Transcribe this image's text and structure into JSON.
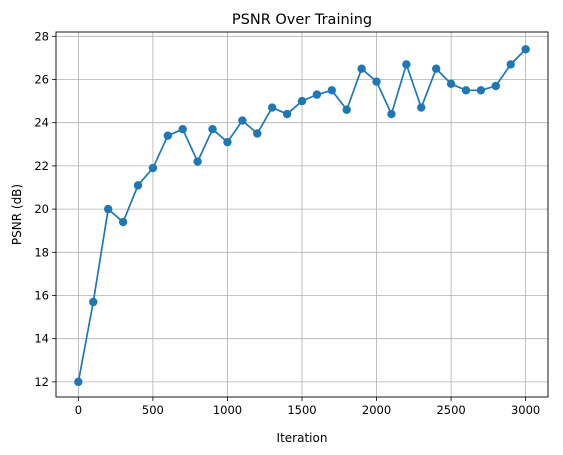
{
  "chart_data": {
    "type": "line",
    "title": "PSNR Over Training",
    "xlabel": "Iteration",
    "ylabel": "PSNR (dB)",
    "xlim": [
      -150,
      3150
    ],
    "ylim": [
      11.3,
      28.2
    ],
    "grid": true,
    "xticks": [
      0,
      500,
      1000,
      1500,
      2000,
      2500,
      3000
    ],
    "yticks": [
      12,
      14,
      16,
      18,
      20,
      22,
      24,
      26,
      28
    ],
    "marker": "circle",
    "color": "#1f77b4",
    "series": [
      {
        "x": [
          0,
          100,
          200,
          300,
          400,
          500,
          600,
          700,
          800,
          900,
          1000,
          1100,
          1200,
          1300,
          1400,
          1500,
          1600,
          1700,
          1800,
          1900,
          2000,
          2100,
          2200,
          2300,
          2400,
          2500,
          2600,
          2700,
          2800,
          2900,
          3000
        ],
        "y": [
          12.0,
          15.7,
          20.0,
          19.4,
          21.1,
          21.9,
          23.4,
          23.7,
          22.2,
          23.7,
          23.1,
          24.1,
          23.5,
          24.7,
          24.4,
          25.0,
          25.3,
          25.5,
          24.6,
          26.5,
          25.9,
          24.4,
          26.7,
          24.7,
          26.5,
          25.8,
          25.5,
          25.5,
          25.7,
          26.7,
          27.4
        ]
      }
    ]
  }
}
